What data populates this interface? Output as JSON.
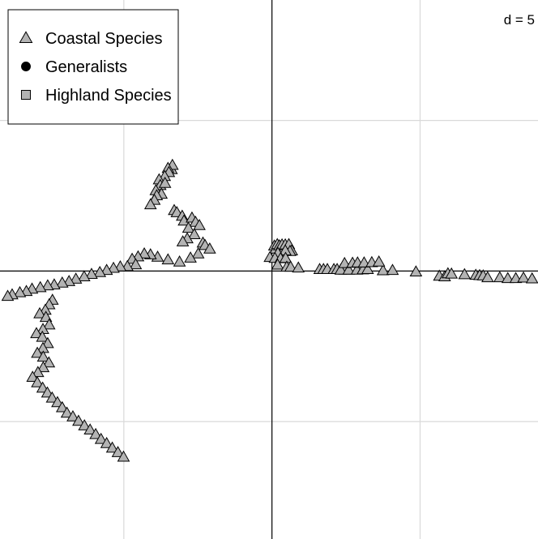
{
  "chart_data": {
    "type": "scatter",
    "title": "",
    "xlabel": "",
    "ylabel": "",
    "grid": true,
    "grid_scale_label": "d = 5",
    "xlim": [
      -9.18,
      8.98
    ],
    "ylim": [
      -8.9,
      9.0
    ],
    "legend_position": "top-left",
    "series": [
      {
        "name": "Coastal Species",
        "marker": "triangle",
        "fill": "#b3b3b3",
        "stroke": "#000000",
        "points": [
          [
            0.08,
            0.83
          ],
          [
            0.13,
            0.73
          ],
          [
            0.18,
            0.88
          ],
          [
            0.25,
            0.84
          ],
          [
            0.34,
            0.87
          ],
          [
            0.45,
            0.87
          ],
          [
            0.57,
            0.88
          ],
          [
            0.67,
            0.67
          ],
          [
            0.61,
            0.65
          ],
          [
            0.45,
            0.67
          ],
          [
            0.2,
            0.59
          ],
          [
            -0.07,
            0.45
          ],
          [
            0.1,
            0.42
          ],
          [
            0.29,
            0.41
          ],
          [
            0.46,
            0.42
          ],
          [
            0.19,
            0.2
          ],
          [
            0.5,
            0.13
          ],
          [
            0.63,
            0.13
          ],
          [
            0.89,
            0.1
          ],
          [
            1.61,
            0.05
          ],
          [
            1.74,
            0.05
          ],
          [
            1.87,
            0.05
          ],
          [
            2.09,
            0.05
          ],
          [
            2.2,
            0.05
          ],
          [
            2.45,
            0.03
          ],
          [
            2.32,
            0.03
          ],
          [
            2.59,
            0.03
          ],
          [
            2.87,
            0.03
          ],
          [
            3.07,
            0.04
          ],
          [
            3.23,
            0.05
          ],
          [
            3.75,
            0.01
          ],
          [
            4.07,
            0.02
          ],
          [
            4.86,
            -0.03
          ],
          [
            5.65,
            -0.17
          ],
          [
            5.83,
            -0.19
          ],
          [
            5.94,
            -0.09
          ],
          [
            6.06,
            -0.1
          ],
          [
            6.5,
            -0.12
          ],
          [
            6.88,
            -0.14
          ],
          [
            7.01,
            -0.15
          ],
          [
            7.13,
            -0.16
          ],
          [
            7.28,
            -0.22
          ],
          [
            7.69,
            -0.22
          ],
          [
            7.96,
            -0.25
          ],
          [
            8.23,
            -0.25
          ],
          [
            8.49,
            -0.23
          ],
          [
            8.78,
            -0.26
          ],
          [
            2.45,
            0.25
          ],
          [
            2.72,
            0.26
          ],
          [
            2.89,
            0.27
          ],
          [
            3.11,
            0.27
          ],
          [
            3.37,
            0.28
          ],
          [
            3.61,
            0.3
          ],
          [
            -3.39,
            3.37
          ],
          [
            -3.36,
            3.51
          ],
          [
            -3.51,
            3.41
          ],
          [
            -3.48,
            3.27
          ],
          [
            -3.62,
            3.14
          ],
          [
            -3.81,
            3.03
          ],
          [
            -3.77,
            2.84
          ],
          [
            -3.61,
            2.91
          ],
          [
            -3.92,
            2.67
          ],
          [
            -3.73,
            2.55
          ],
          [
            -3.89,
            2.5
          ],
          [
            -3.97,
            2.35
          ],
          [
            -4.1,
            2.2
          ],
          [
            -3.3,
            2.01
          ],
          [
            -3.21,
            1.94
          ],
          [
            -3.03,
            1.82
          ],
          [
            -2.97,
            1.66
          ],
          [
            -2.7,
            1.76
          ],
          [
            -2.58,
            1.62
          ],
          [
            -2.45,
            1.51
          ],
          [
            -2.82,
            1.42
          ],
          [
            -2.62,
            1.21
          ],
          [
            -2.86,
            1.07
          ],
          [
            -3.01,
            0.97
          ],
          [
            -2.33,
            0.93
          ],
          [
            -2.26,
            0.85
          ],
          [
            -2.1,
            0.73
          ],
          [
            -2.49,
            0.57
          ],
          [
            -2.75,
            0.43
          ],
          [
            -3.12,
            0.3
          ],
          [
            -3.51,
            0.37
          ],
          [
            -3.86,
            0.46
          ],
          [
            -4.1,
            0.54
          ],
          [
            -4.31,
            0.57
          ],
          [
            -4.52,
            0.47
          ],
          [
            -4.72,
            0.39
          ],
          [
            -4.6,
            0.21
          ],
          [
            -4.88,
            0.15
          ],
          [
            -5.12,
            0.14
          ],
          [
            -5.35,
            0.09
          ],
          [
            -5.58,
            0.02
          ],
          [
            -5.81,
            -0.05
          ],
          [
            -6.09,
            -0.11
          ],
          [
            -6.34,
            -0.19
          ],
          [
            -6.62,
            -0.27
          ],
          [
            -6.85,
            -0.35
          ],
          [
            -7.08,
            -0.4
          ],
          [
            -7.35,
            -0.46
          ],
          [
            -7.57,
            -0.49
          ],
          [
            -7.82,
            -0.55
          ],
          [
            -8.1,
            -0.6
          ],
          [
            -8.29,
            -0.68
          ],
          [
            -8.51,
            -0.72
          ],
          [
            -8.77,
            -0.79
          ],
          [
            -8.92,
            -0.84
          ],
          [
            -7.41,
            -0.97
          ],
          [
            -7.52,
            -1.12
          ],
          [
            -7.65,
            -1.3
          ],
          [
            -7.84,
            -1.42
          ],
          [
            -7.63,
            -1.54
          ],
          [
            -7.52,
            -1.79
          ],
          [
            -7.73,
            -1.94
          ],
          [
            -7.95,
            -2.08
          ],
          [
            -7.75,
            -2.2
          ],
          [
            -7.57,
            -2.41
          ],
          [
            -7.73,
            -2.57
          ],
          [
            -7.92,
            -2.73
          ],
          [
            -7.72,
            -2.86
          ],
          [
            -7.53,
            -3.05
          ],
          [
            -7.72,
            -3.21
          ],
          [
            -7.9,
            -3.37
          ],
          [
            -8.08,
            -3.53
          ],
          [
            -7.92,
            -3.71
          ],
          [
            -7.74,
            -3.89
          ],
          [
            -7.58,
            -4.05
          ],
          [
            -7.42,
            -4.22
          ],
          [
            -7.24,
            -4.37
          ],
          [
            -7.08,
            -4.54
          ],
          [
            -6.92,
            -4.72
          ],
          [
            -6.72,
            -4.84
          ],
          [
            -6.53,
            -4.99
          ],
          [
            -6.33,
            -5.14
          ],
          [
            -6.14,
            -5.28
          ],
          [
            -5.95,
            -5.43
          ],
          [
            -5.77,
            -5.59
          ],
          [
            -5.58,
            -5.73
          ],
          [
            -5.39,
            -5.88
          ],
          [
            -5.2,
            -6.03
          ],
          [
            -5.01,
            -6.18
          ]
        ]
      },
      {
        "name": "Generalists",
        "marker": "circle",
        "fill": "#000000",
        "stroke": "#000000",
        "points": []
      },
      {
        "name": "Highland Species",
        "marker": "square",
        "fill": "#b3b3b3",
        "stroke": "#000000",
        "points": []
      }
    ]
  }
}
